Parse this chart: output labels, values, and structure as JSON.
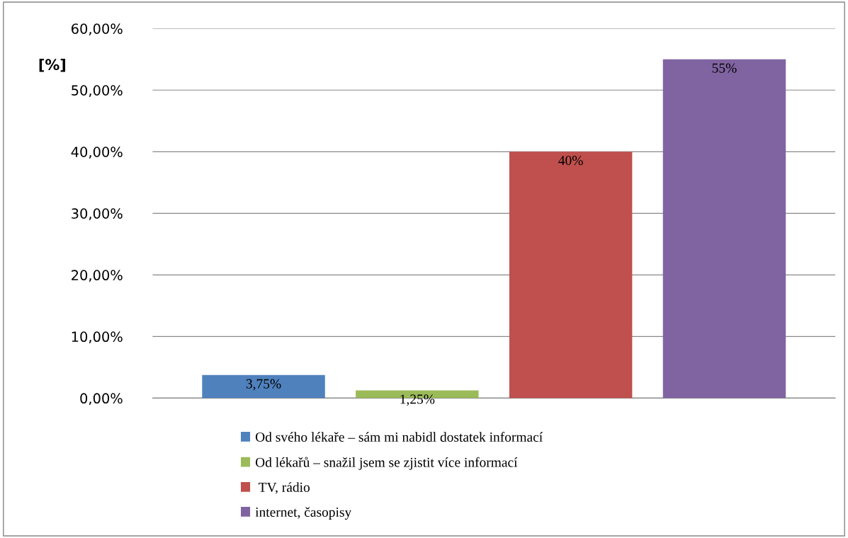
{
  "chart_data": {
    "type": "bar",
    "ylabel": "[%]",
    "categories": [
      null
    ],
    "series": [
      {
        "name": "Od svého lékaře – sám mi nabidl dostatek informací",
        "color": "#4f81bd",
        "values": [
          3.75
        ],
        "value_labels": [
          "3,75%"
        ]
      },
      {
        "name": "Od lékařů – snažil jsem se zjistit více informací",
        "color": "#9bbb59",
        "values": [
          1.25
        ],
        "value_labels": [
          "1,25%"
        ]
      },
      {
        "name": " TV, rádio",
        "color": "#c0504d",
        "values": [
          40
        ],
        "value_labels": [
          "40%"
        ]
      },
      {
        "name": "internet, časopisy",
        "color": "#8064a2",
        "values": [
          55
        ],
        "value_labels": [
          "55%"
        ]
      }
    ],
    "ylim": [
      0,
      60
    ],
    "yticks": [
      {
        "value": 0,
        "label": "0,00%"
      },
      {
        "value": 10,
        "label": "10,00%"
      },
      {
        "value": 20,
        "label": "20,00%"
      },
      {
        "value": 30,
        "label": "30,00%"
      },
      {
        "value": 40,
        "label": "40,00%"
      },
      {
        "value": 50,
        "label": "50,00%"
      },
      {
        "value": 60,
        "label": "60,00%"
      }
    ],
    "grid": "y",
    "legend": "bottom"
  }
}
